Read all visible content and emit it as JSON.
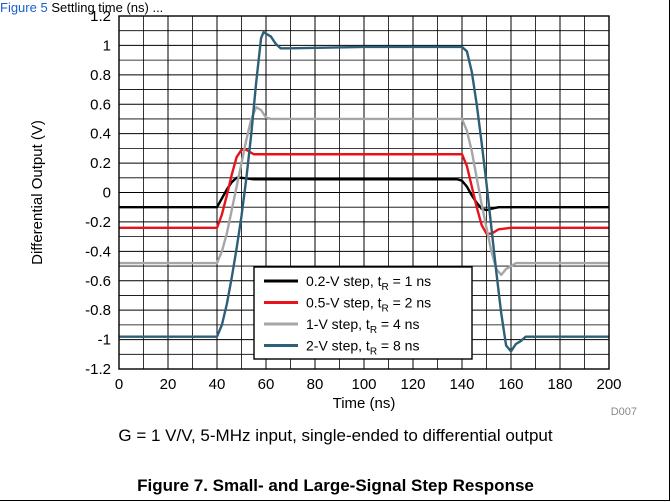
{
  "header": {
    "link_text": "Figure 5",
    "rest_text": " Settling time (ns) ..."
  },
  "caption": {
    "conditions": "G = 1 V/V, 5-MHz input, single-ended to differential output",
    "figure_title": "Figure 7. Small- and Large-Signal Step Response"
  },
  "chart_data": {
    "type": "line",
    "xlabel": "Time (ns)",
    "ylabel": "Differential Output (V)",
    "xlim": [
      0,
      200
    ],
    "ylim": [
      -1.2,
      1.2
    ],
    "x_ticks": [
      0,
      20,
      40,
      60,
      80,
      100,
      120,
      140,
      160,
      180,
      200
    ],
    "x_tick_labels": [
      "0",
      "20",
      "40",
      "60",
      "80",
      "100",
      "120",
      "140",
      "160",
      "180",
      "200"
    ],
    "y_ticks": [
      1.2,
      1,
      0.8,
      0.6,
      0.4,
      0.2,
      0,
      -0.2,
      -0.4,
      -0.6,
      -0.8,
      -1,
      -1.2
    ],
    "y_tick_labels": [
      "1.2",
      "1",
      "0.8",
      "0.6",
      "0.4",
      "0.2",
      "0",
      "-0.2",
      "-0.4",
      "-0.6",
      "-0.8",
      "-1",
      "-1.2"
    ],
    "grid": true,
    "legend_position": "bottom-right",
    "code": "D007",
    "series": [
      {
        "name": "0.2-V step, tR = 1 ns",
        "label_main": "0.2-V step, t",
        "label_sub": "R",
        "label_tail": " = 1 ns",
        "color": "#000000",
        "x": [
          0,
          38,
          40,
          42,
          44,
          46,
          48,
          50,
          55,
          60,
          100,
          138,
          140,
          142,
          144,
          146,
          148,
          150,
          152,
          155,
          160,
          200
        ],
        "y": [
          -0.1,
          -0.1,
          -0.1,
          -0.04,
          0.02,
          0.07,
          0.1,
          0.1,
          0.09,
          0.09,
          0.09,
          0.09,
          0.08,
          0.04,
          -0.02,
          -0.07,
          -0.11,
          -0.12,
          -0.11,
          -0.1,
          -0.1,
          -0.1
        ]
      },
      {
        "name": "0.5-V step, tR = 2 ns",
        "label_main": "0.5-V step, t",
        "label_sub": "R",
        "label_tail": " = 2 ns",
        "color": "#e8131a",
        "x": [
          0,
          40,
          42,
          44,
          46,
          48,
          50,
          52,
          55,
          60,
          100,
          140,
          142,
          144,
          146,
          148,
          150,
          152,
          155,
          160,
          200
        ],
        "y": [
          -0.24,
          -0.24,
          -0.15,
          -0.02,
          0.12,
          0.24,
          0.29,
          0.29,
          0.26,
          0.26,
          0.26,
          0.26,
          0.18,
          0.04,
          -0.1,
          -0.22,
          -0.28,
          -0.28,
          -0.25,
          -0.24,
          -0.24
        ]
      },
      {
        "name": "1-V step, tR = 4 ns",
        "label_main": "1-V step, t",
        "label_sub": "R",
        "label_tail": " = 4 ns",
        "color": "#a6a6a6",
        "x": [
          0,
          40,
          42,
          44,
          46,
          48,
          50,
          52,
          54,
          56,
          58,
          60,
          62,
          65,
          100,
          140,
          142,
          144,
          146,
          148,
          150,
          152,
          154,
          156,
          158,
          162,
          200
        ],
        "y": [
          -0.48,
          -0.48,
          -0.4,
          -0.28,
          -0.12,
          0.04,
          0.2,
          0.36,
          0.5,
          0.58,
          0.56,
          0.51,
          0.5,
          0.5,
          0.5,
          0.5,
          0.42,
          0.28,
          0.1,
          -0.08,
          -0.24,
          -0.4,
          -0.52,
          -0.56,
          -0.52,
          -0.48,
          -0.48
        ]
      },
      {
        "name": "2-V step, tR = 8 ns",
        "label_main": "2-V step, t",
        "label_sub": "R",
        "label_tail": " = 8 ns",
        "color": "#2d5f78",
        "x": [
          0,
          40,
          42,
          44,
          46,
          48,
          50,
          52,
          54,
          56,
          58,
          59,
          60,
          62,
          64,
          66,
          70,
          100,
          140,
          142,
          144,
          146,
          148,
          150,
          152,
          154,
          156,
          158,
          160,
          162,
          164,
          166,
          170,
          200
        ],
        "y": [
          -0.98,
          -0.98,
          -0.9,
          -0.76,
          -0.58,
          -0.38,
          -0.16,
          0.1,
          0.4,
          0.75,
          1.05,
          1.09,
          1.08,
          1.06,
          1.01,
          0.98,
          0.98,
          0.99,
          0.99,
          0.96,
          0.82,
          0.6,
          0.34,
          0.06,
          -0.24,
          -0.54,
          -0.82,
          -1.04,
          -1.08,
          -1.03,
          -1.01,
          -0.98,
          -0.98,
          -0.98
        ]
      }
    ]
  }
}
